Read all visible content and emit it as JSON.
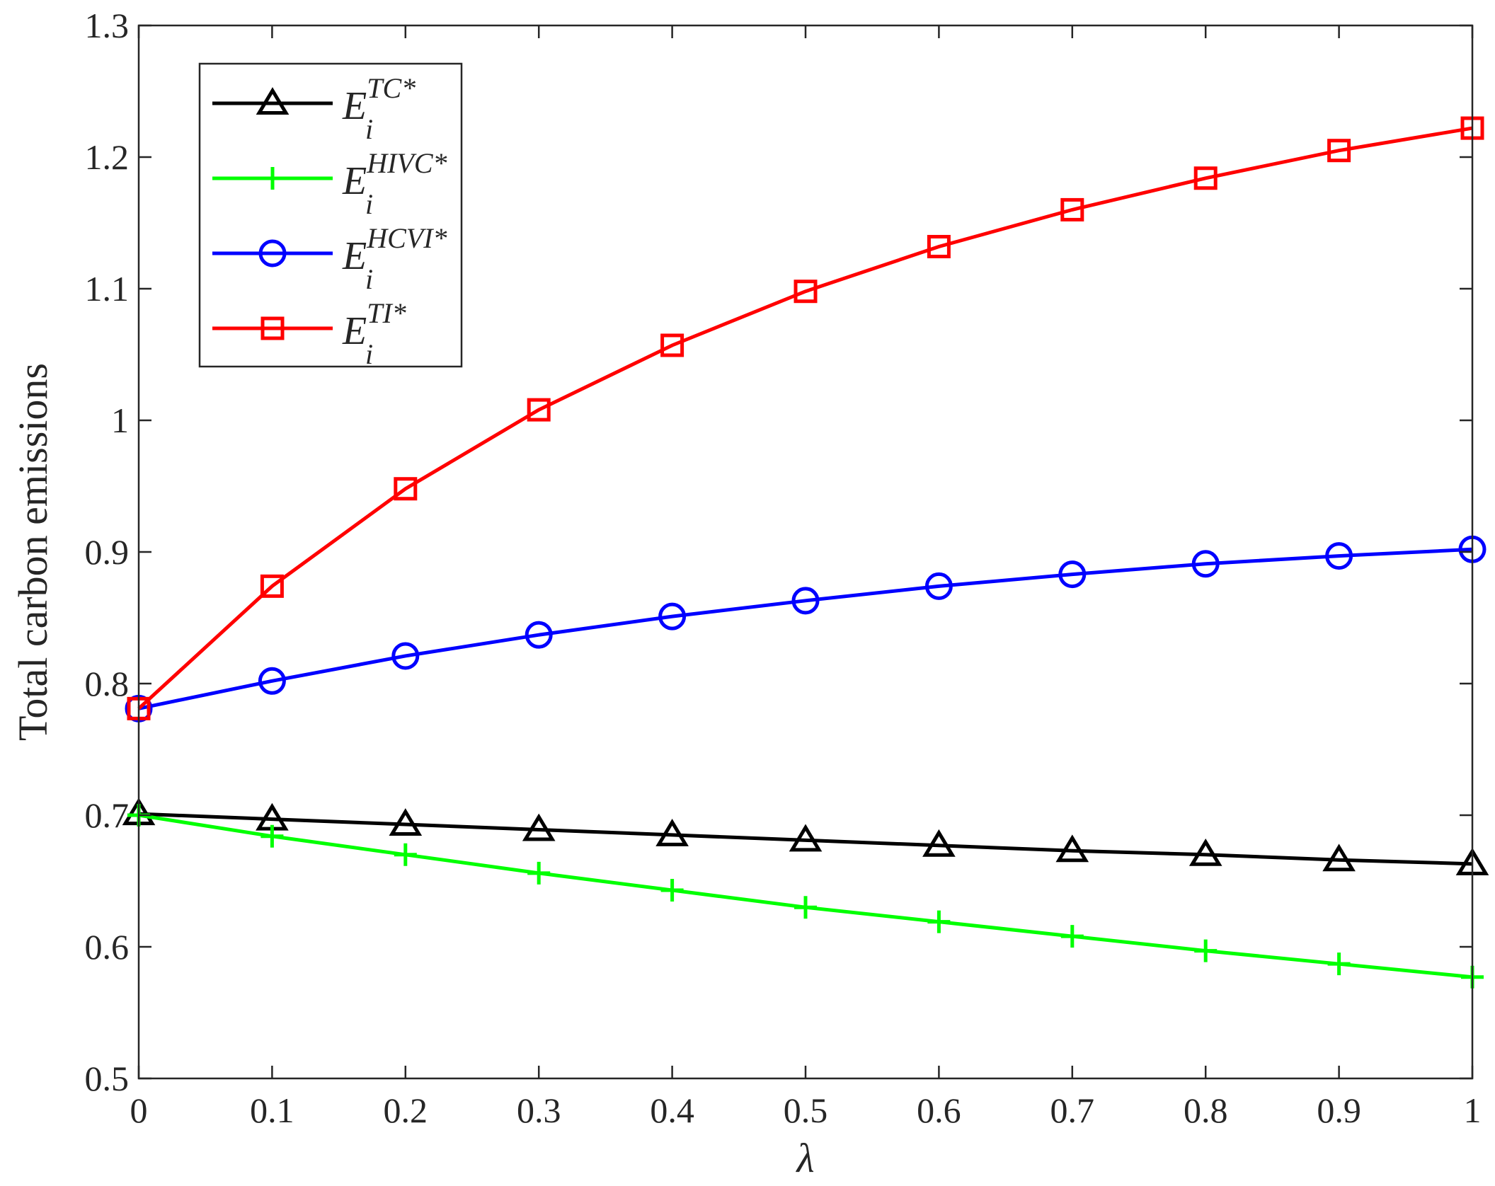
{
  "chart_data": {
    "type": "line",
    "title": "",
    "xlabel": "λ",
    "ylabel": "Total carbon emissions",
    "xlim": [
      0,
      1
    ],
    "ylim": [
      0.5,
      1.3
    ],
    "xticks": [
      0,
      0.1,
      0.2,
      0.3,
      0.4,
      0.5,
      0.6,
      0.7,
      0.8,
      0.9,
      1
    ],
    "xtick_labels": [
      "0",
      "0.1",
      "0.2",
      "0.3",
      "0.4",
      "0.5",
      "0.6",
      "0.7",
      "0.8",
      "0.9",
      "1"
    ],
    "yticks": [
      0.5,
      0.6,
      0.7,
      0.8,
      0.9,
      1.0,
      1.1,
      1.2,
      1.3
    ],
    "ytick_labels": [
      "0.5",
      "0.6",
      "0.7",
      "0.8",
      "0.9",
      "1",
      "1.1",
      "1.2",
      "1.3"
    ],
    "grid": false,
    "legend_position": "top-left",
    "x": [
      0,
      0.1,
      0.2,
      0.3,
      0.4,
      0.5,
      0.6,
      0.7,
      0.8,
      0.9,
      1
    ],
    "series": [
      {
        "name": "E_i^{TC*}",
        "label_base": "E",
        "label_sup": "TC*",
        "label_sub": "i",
        "color": "#000000",
        "marker": "triangle",
        "values": [
          0.701,
          0.697,
          0.693,
          0.689,
          0.685,
          0.681,
          0.677,
          0.673,
          0.67,
          0.666,
          0.663
        ]
      },
      {
        "name": "E_i^{HIVC*}",
        "label_base": "E",
        "label_sup": "HIVC*",
        "label_sub": "i",
        "color": "#00ff00",
        "marker": "plus",
        "values": [
          0.7,
          0.684,
          0.67,
          0.656,
          0.643,
          0.63,
          0.619,
          0.608,
          0.597,
          0.587,
          0.577
        ]
      },
      {
        "name": "E_i^{HCVI*}",
        "label_base": "E",
        "label_sup": "HCVI*",
        "label_sub": "i",
        "color": "#0000ff",
        "marker": "circle",
        "values": [
          0.781,
          0.802,
          0.821,
          0.837,
          0.851,
          0.863,
          0.874,
          0.883,
          0.891,
          0.897,
          0.902
        ]
      },
      {
        "name": "E_i^{TI*}",
        "label_base": "E",
        "label_sup": "TI*",
        "label_sub": "i",
        "color": "#ff0000",
        "marker": "square",
        "values": [
          0.781,
          0.874,
          0.948,
          1.008,
          1.057,
          1.098,
          1.132,
          1.16,
          1.184,
          1.205,
          1.222
        ]
      }
    ]
  }
}
